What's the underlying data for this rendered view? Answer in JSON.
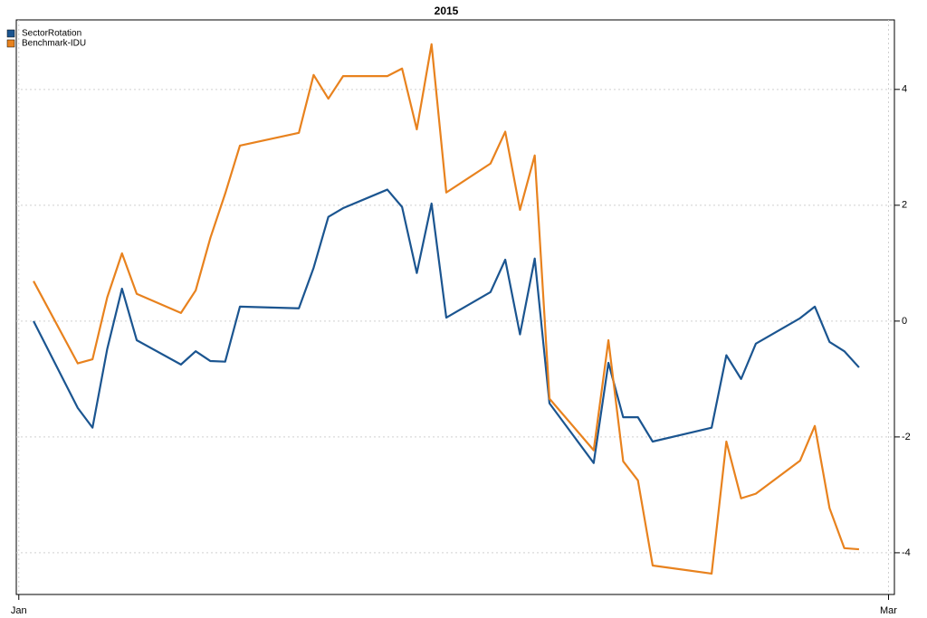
{
  "chart_data": {
    "type": "line",
    "title": "2015",
    "x": [
      1,
      4,
      5,
      6,
      7,
      8,
      11,
      12,
      13,
      14,
      15,
      19,
      20,
      21,
      22,
      25,
      26,
      27,
      28,
      29,
      32,
      33,
      34,
      35,
      36,
      39,
      40,
      41,
      42,
      43,
      47,
      48,
      49,
      50,
      53,
      54,
      55,
      56,
      57
    ],
    "series": [
      {
        "name": "SectorRotation",
        "color": "#1b5590",
        "values": [
          0,
          -1.5,
          -1.84,
          -0.48,
          0.56,
          -0.33,
          -0.75,
          -0.52,
          -0.69,
          -0.7,
          0.25,
          0.22,
          0.92,
          1.8,
          1.95,
          2.27,
          1.97,
          0.83,
          2.03,
          0.06,
          0.5,
          1.06,
          -0.23,
          1.08,
          -1.42,
          -2.45,
          -0.72,
          -1.66,
          -1.66,
          -2.08,
          -1.84,
          -0.59,
          -1.0,
          -0.39,
          0.05,
          0.25,
          -0.36,
          -0.52,
          -0.8
        ]
      },
      {
        "name": "Benchmark-IDU",
        "color": "#e8821e",
        "values": [
          0.69,
          -0.73,
          -0.66,
          0.41,
          1.17,
          0.47,
          0.14,
          0.53,
          1.44,
          2.2,
          3.03,
          3.25,
          4.25,
          3.84,
          4.23,
          4.23,
          4.36,
          3.31,
          4.78,
          2.22,
          2.72,
          3.27,
          1.92,
          2.86,
          -1.34,
          -2.23,
          -0.33,
          -2.42,
          -2.75,
          -4.22,
          -4.36,
          -2.08,
          -3.06,
          -2.98,
          -2.41,
          -1.81,
          -3.23,
          -3.92,
          -3.94
        ]
      }
    ],
    "xlim": [
      -0.17,
      59.4
    ],
    "xticks": [
      {
        "value": 0,
        "label": "Jan"
      },
      {
        "value": 59,
        "label": "Mar"
      }
    ],
    "ylim": [
      -4.72,
      5.2
    ],
    "yticks": [
      -4,
      -2,
      0,
      2,
      4
    ],
    "grid": true,
    "legend": "top-left"
  }
}
